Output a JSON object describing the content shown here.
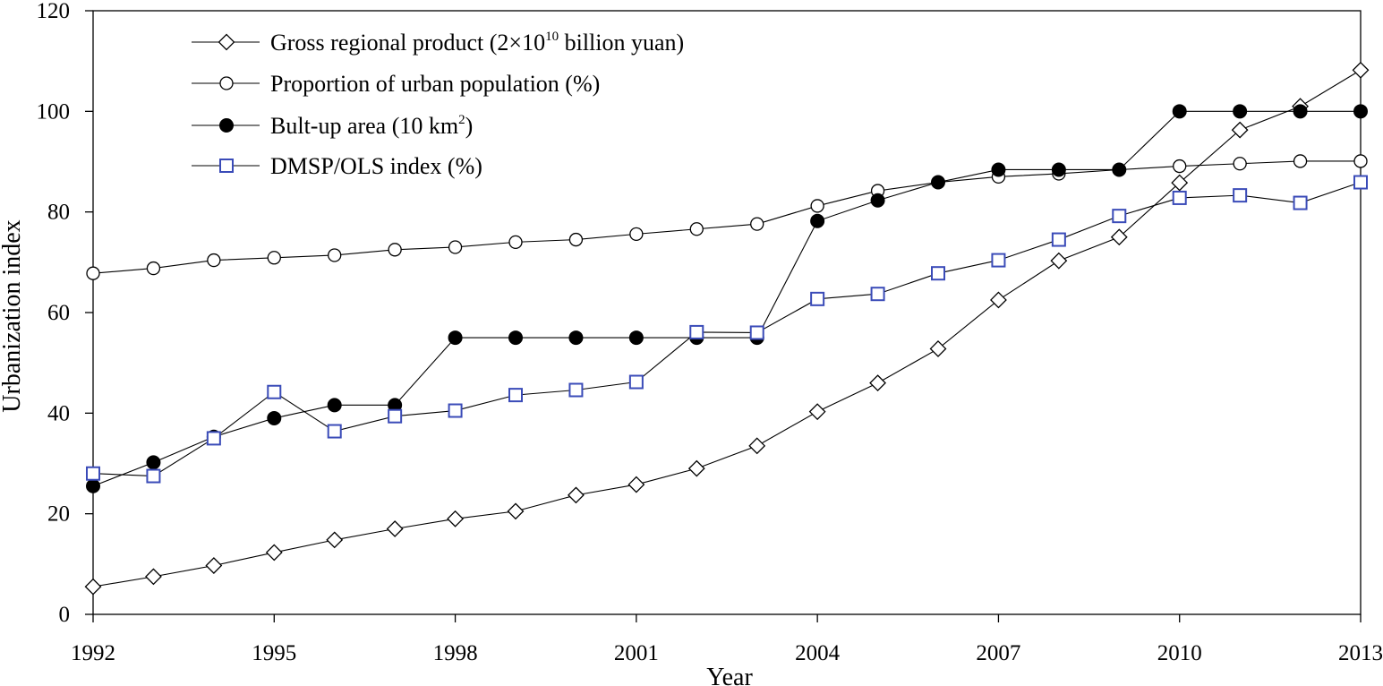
{
  "chart_data": {
    "type": "line",
    "title": "",
    "xlabel": "Year",
    "ylabel": "Urbanization index",
    "xlim": [
      1992,
      2013
    ],
    "ylim": [
      0,
      120
    ],
    "xticks": [
      1992,
      1995,
      1998,
      2001,
      2004,
      2007,
      2010,
      2013
    ],
    "yticks": [
      0,
      20,
      40,
      60,
      80,
      100,
      120
    ],
    "grid": false,
    "legend_position": "top-left",
    "x": [
      1992,
      1993,
      1994,
      1995,
      1996,
      1997,
      1998,
      1999,
      2000,
      2001,
      2002,
      2003,
      2004,
      2005,
      2006,
      2007,
      2008,
      2009,
      2010,
      2011,
      2012,
      2013
    ],
    "series": [
      {
        "name": "Gross regional product",
        "legend_label": "Gross regional product (2×10",
        "legend_sup": "10",
        "legend_suffix": " billion yuan)",
        "marker": "diamond",
        "color": "#000000",
        "values": [
          5.5,
          7.5,
          9.7,
          12.3,
          14.8,
          17,
          19,
          20.5,
          23.7,
          25.8,
          29,
          33.5,
          40.3,
          46,
          52.8,
          62.5,
          70.3,
          75,
          85.8,
          96.3,
          101,
          108.2
        ]
      },
      {
        "name": "Proportion of urban population",
        "legend_label": "Proportion of urban population (%)",
        "legend_sup": "",
        "legend_suffix": "",
        "marker": "circle-open",
        "color": "#000000",
        "values": [
          67.8,
          68.8,
          70.4,
          70.9,
          71.4,
          72.5,
          73,
          74,
          74.5,
          75.6,
          76.6,
          77.6,
          81.2,
          84.2,
          85.9,
          87,
          87.6,
          88.4,
          89.1,
          89.6,
          90.1,
          90.1
        ]
      },
      {
        "name": "Bult-up area",
        "legend_label": "Bult-up area (10 km",
        "legend_sup": "2",
        "legend_suffix": ")",
        "marker": "circle-filled",
        "color": "#000000",
        "values": [
          25.5,
          30.2,
          35.3,
          39,
          41.6,
          41.6,
          55,
          55,
          55,
          55,
          55,
          55,
          78.2,
          82.3,
          85.9,
          88.4,
          88.4,
          88.4,
          100,
          100,
          100,
          100
        ]
      },
      {
        "name": "DMSP/OLS index",
        "legend_label": "DMSP/OLS index (%)",
        "legend_sup": "",
        "legend_suffix": "",
        "marker": "square-open",
        "color": "#3a4bb8",
        "values": [
          28,
          27.5,
          35,
          44.2,
          36.4,
          39.4,
          40.5,
          43.6,
          44.6,
          46.2,
          56.1,
          56,
          62.7,
          63.7,
          67.8,
          70.4,
          74.5,
          79.2,
          82.8,
          83.3,
          81.8,
          85.9
        ]
      }
    ]
  }
}
